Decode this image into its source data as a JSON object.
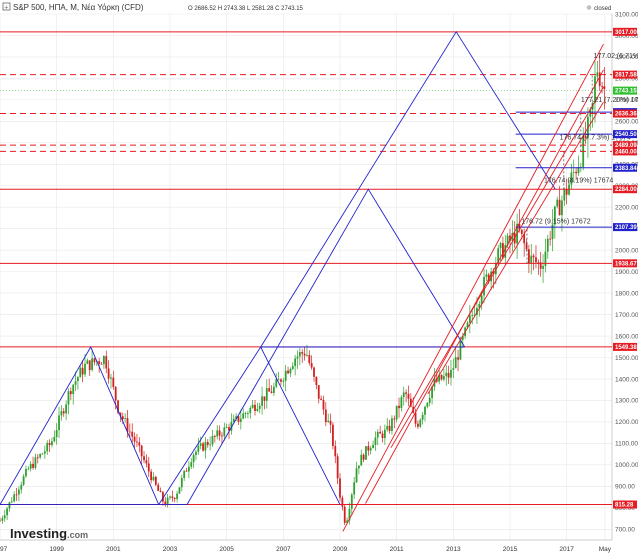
{
  "header": {
    "icon": "plus-square-icon",
    "title": "S&P 500, ΗΠΑ, M, Νέα Υόρκη (CFD)",
    "ohlc": "O 2686.52  H 2743.38  L 2581.28  C 2743.15",
    "status": "closed"
  },
  "brand": {
    "logo_main": "Investing",
    "logo_suffix": ".com"
  },
  "colors": {
    "up": "#2fa02f",
    "down": "#d02020",
    "red_line": "#e51c23",
    "blue_line": "#2222cc",
    "grid": "#e8e8e8",
    "last_price": "#2fbf2f"
  },
  "chart_data": {
    "type": "candlestick",
    "ylim": [
      650,
      3100
    ],
    "y_ticks": [
      700,
      800,
      900,
      1000,
      1100,
      1200,
      1300,
      1400,
      1500,
      1600,
      1700,
      1800,
      1900,
      2000,
      2100,
      2200,
      2300,
      2400,
      2500,
      2600,
      2700,
      2800,
      2900,
      3000,
      3100
    ],
    "x_ticks": [
      "1997",
      "1999",
      "2001",
      "2003",
      "2005",
      "2007",
      "2009",
      "2011",
      "2013",
      "2015",
      "2017",
      "May"
    ],
    "x_tick_years": [
      1997,
      1999,
      2001,
      2003,
      2005,
      2007,
      2009,
      2011,
      2013,
      2015,
      2017,
      2018.35
    ],
    "xlim": [
      1997,
      2018.6
    ],
    "price_path": [
      [
        1997.0,
        740
      ],
      [
        1998.0,
        980
      ],
      [
        1998.8,
        1100
      ],
      [
        1999.5,
        1360
      ],
      [
        2000.0,
        1460
      ],
      [
        2000.7,
        1500
      ],
      [
        2001.2,
        1250
      ],
      [
        2001.8,
        1100
      ],
      [
        2002.5,
        900
      ],
      [
        2002.8,
        820
      ],
      [
        2003.2,
        860
      ],
      [
        2003.8,
        1050
      ],
      [
        2004.5,
        1120
      ],
      [
        2005.2,
        1190
      ],
      [
        2006.0,
        1280
      ],
      [
        2006.7,
        1360
      ],
      [
        2007.4,
        1500
      ],
      [
        2007.8,
        1530
      ],
      [
        2008.2,
        1340
      ],
      [
        2008.7,
        1150
      ],
      [
        2009.0,
        860
      ],
      [
        2009.2,
        720
      ],
      [
        2009.6,
        1000
      ],
      [
        2010.2,
        1120
      ],
      [
        2010.7,
        1160
      ],
      [
        2011.3,
        1340
      ],
      [
        2011.7,
        1180
      ],
      [
        2012.3,
        1380
      ],
      [
        2012.9,
        1420
      ],
      [
        2013.5,
        1640
      ],
      [
        2014.0,
        1820
      ],
      [
        2014.6,
        1980
      ],
      [
        2015.3,
        2090
      ],
      [
        2015.7,
        1960
      ],
      [
        2016.1,
        1930
      ],
      [
        2016.6,
        2170
      ],
      [
        2017.0,
        2280
      ],
      [
        2017.5,
        2440
      ],
      [
        2017.9,
        2640
      ],
      [
        2018.05,
        2860
      ],
      [
        2018.35,
        2743
      ]
    ],
    "last_price": 2743.15,
    "levels": [
      {
        "price": 3017.0,
        "label": "3017.00",
        "color": "#e51c23",
        "style": "solid"
      },
      {
        "price": 2817.58,
        "label": "2817.58",
        "color": "#e51c23",
        "style": "dashed"
      },
      {
        "price": 2643.0,
        "label": "2643.00",
        "color": "#2222cc",
        "style": "solid"
      },
      {
        "price": 2636.36,
        "label": "2636.36",
        "color": "#e51c23",
        "style": "dashed"
      },
      {
        "price": 2540.5,
        "label": "2540.50",
        "color": "#2222cc",
        "style": "solid"
      },
      {
        "price": 2489.09,
        "label": "2489.09",
        "color": "#e51c23",
        "style": "dashed"
      },
      {
        "price": 2460.0,
        "label": "2460.00",
        "color": "#e51c23",
        "style": "dashed"
      },
      {
        "price": 2383.84,
        "label": "2383.84",
        "color": "#2222cc",
        "style": "solid"
      },
      {
        "price": 2284.0,
        "label": "2284.00",
        "color": "#e51c23",
        "style": "solid"
      },
      {
        "price": 2107.39,
        "label": "2107.39",
        "color": "#2222cc",
        "style": "solid"
      },
      {
        "price": 1938.67,
        "label": "1938.67",
        "color": "#e51c23",
        "style": "solid"
      },
      {
        "price": 1549.38,
        "label": "1549.38",
        "color": "#e51c23",
        "style": "solid"
      },
      {
        "price": 815.28,
        "label": "815.28",
        "color": "#e51c23",
        "style": "solid"
      }
    ],
    "annotations": [
      {
        "text": "177.02 (6.71%)",
        "x": 2017.95,
        "y": 2895
      },
      {
        "text": "177.21 (7.20%) 176",
        "x": 2017.5,
        "y": 2690
      },
      {
        "text": "176.74 (7.7.3%) 17674",
        "x": 2016.75,
        "y": 2515
      },
      {
        "text": "176.74 (8.19%) 17674",
        "x": 2016.2,
        "y": 2315
      },
      {
        "text": "176.72 (9.15%) 17672",
        "x": 2015.4,
        "y": 2125
      }
    ]
  }
}
